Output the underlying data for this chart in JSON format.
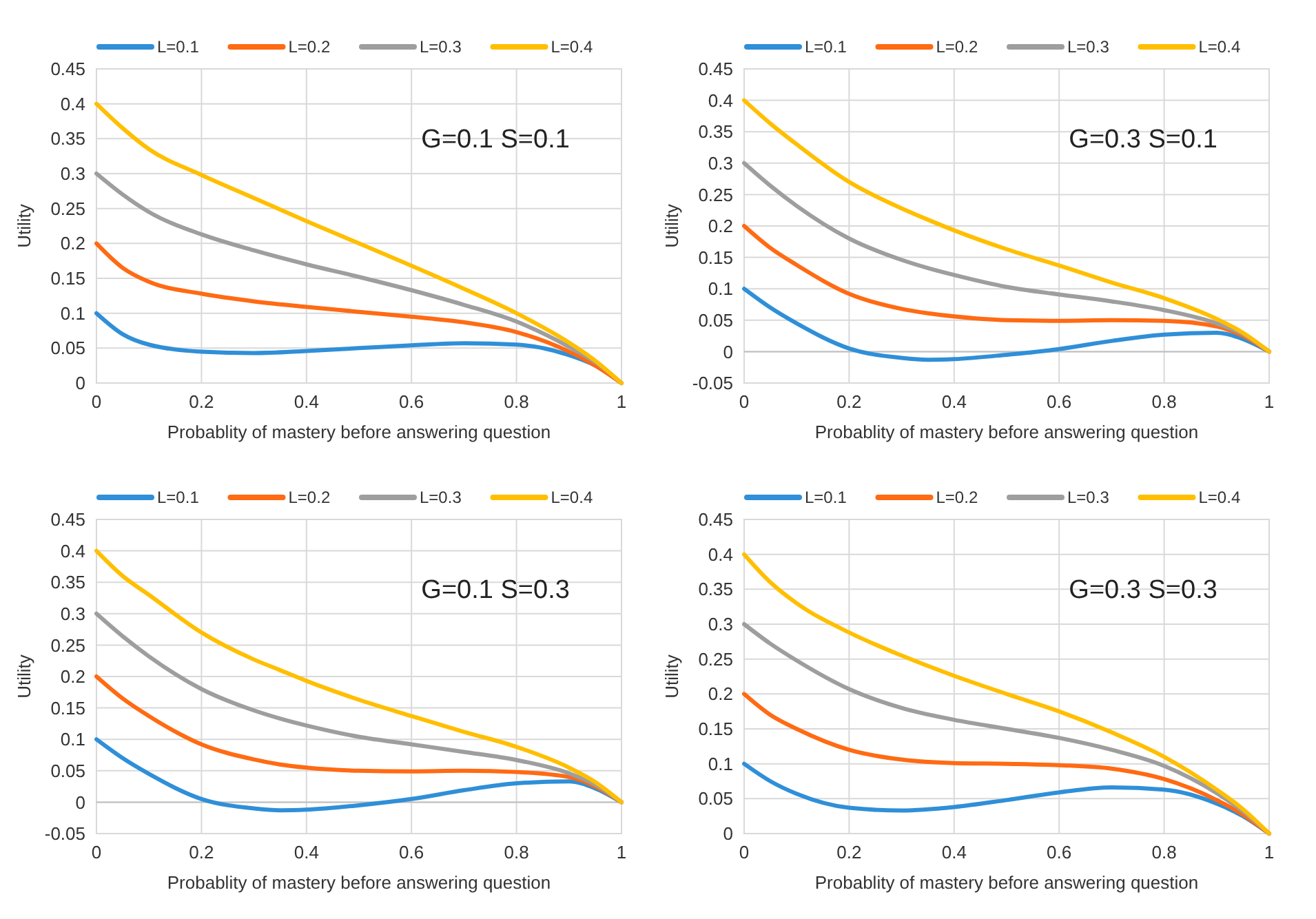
{
  "chart_data": [
    {
      "type": "line",
      "xlabel": "Probablity of mastery before answering question",
      "ylabel": "Utility",
      "annotations": [
        "G=0.1 S=0.1"
      ],
      "xlim": [
        0,
        1
      ],
      "ylim": [
        0,
        0.45
      ],
      "xticks": [
        0,
        0.2,
        0.4,
        0.6,
        0.8,
        1
      ],
      "yticks": [
        0,
        0.05,
        0.1,
        0.15,
        0.2,
        0.25,
        0.3,
        0.35,
        0.4,
        0.45
      ],
      "grid": true,
      "legend": "top",
      "x": [
        0,
        0.05,
        0.1,
        0.2,
        0.3,
        0.4,
        0.5,
        0.6,
        0.7,
        0.8,
        0.9,
        0.95,
        1
      ],
      "series": [
        {
          "name": "L=0.1",
          "color": "#2f8fd8",
          "values": [
            0.1,
            0.07,
            0.055,
            0.045,
            0.043,
            0.046,
            0.05,
            0.054,
            0.057,
            0.055,
            0.04,
            0.025,
            0
          ]
        },
        {
          "name": "L=0.2",
          "color": "#ff6a13",
          "values": [
            0.2,
            0.165,
            0.145,
            0.128,
            0.117,
            0.109,
            0.102,
            0.095,
            0.087,
            0.073,
            0.045,
            0.025,
            0
          ]
        },
        {
          "name": "L=0.3",
          "color": "#9e9e9e",
          "values": [
            0.3,
            0.27,
            0.245,
            0.213,
            0.19,
            0.17,
            0.152,
            0.133,
            0.112,
            0.088,
            0.052,
            0.03,
            0
          ]
        },
        {
          "name": "L=0.4",
          "color": "#ffbf00",
          "values": [
            0.4,
            0.365,
            0.335,
            0.298,
            0.265,
            0.232,
            0.2,
            0.168,
            0.135,
            0.1,
            0.058,
            0.032,
            0
          ]
        }
      ]
    },
    {
      "type": "line",
      "xlabel": "Probablity of mastery before answering question",
      "ylabel": "Utility",
      "annotations": [
        "G=0.3 S=0.1"
      ],
      "xlim": [
        0,
        1
      ],
      "ylim": [
        -0.05,
        0.45
      ],
      "xticks": [
        0,
        0.2,
        0.4,
        0.6,
        0.8,
        1
      ],
      "yticks": [
        -0.05,
        0,
        0.05,
        0.1,
        0.15,
        0.2,
        0.25,
        0.3,
        0.35,
        0.4,
        0.45
      ],
      "grid": true,
      "legend": "top",
      "x": [
        0,
        0.05,
        0.1,
        0.2,
        0.3,
        0.35,
        0.4,
        0.5,
        0.6,
        0.7,
        0.8,
        0.9,
        0.95,
        1
      ],
      "series": [
        {
          "name": "L=0.1",
          "color": "#2f8fd8",
          "values": [
            0.1,
            0.07,
            0.045,
            0.005,
            -0.01,
            -0.013,
            -0.012,
            -0.005,
            0.004,
            0.017,
            0.027,
            0.03,
            0.02,
            0
          ]
        },
        {
          "name": "L=0.2",
          "color": "#ff6a13",
          "values": [
            0.2,
            0.165,
            0.138,
            0.092,
            0.068,
            0.061,
            0.056,
            0.05,
            0.049,
            0.05,
            0.049,
            0.04,
            0.025,
            0
          ]
        },
        {
          "name": "L=0.3",
          "color": "#9e9e9e",
          "values": [
            0.3,
            0.264,
            0.232,
            0.18,
            0.146,
            0.133,
            0.122,
            0.103,
            0.091,
            0.08,
            0.066,
            0.045,
            0.028,
            0
          ]
        },
        {
          "name": "L=0.4",
          "color": "#ffbf00",
          "values": [
            0.4,
            0.363,
            0.33,
            0.27,
            0.228,
            0.21,
            0.193,
            0.163,
            0.137,
            0.11,
            0.085,
            0.052,
            0.03,
            0
          ]
        }
      ]
    },
    {
      "type": "line",
      "xlabel": "Probablity of mastery before answering question",
      "ylabel": "Utility",
      "annotations": [
        "G=0.1 S=0.3"
      ],
      "xlim": [
        0,
        1
      ],
      "ylim": [
        -0.05,
        0.45
      ],
      "xticks": [
        0,
        0.2,
        0.4,
        0.6,
        0.8,
        1
      ],
      "yticks": [
        -0.05,
        0,
        0.05,
        0.1,
        0.15,
        0.2,
        0.25,
        0.3,
        0.35,
        0.4,
        0.45
      ],
      "grid": true,
      "legend": "top",
      "x": [
        0,
        0.05,
        0.1,
        0.2,
        0.3,
        0.35,
        0.4,
        0.5,
        0.6,
        0.7,
        0.8,
        0.9,
        0.95,
        1
      ],
      "series": [
        {
          "name": "L=0.1",
          "color": "#2f8fd8",
          "values": [
            0.1,
            0.07,
            0.045,
            0.005,
            -0.01,
            -0.013,
            -0.012,
            -0.005,
            0.005,
            0.019,
            0.03,
            0.033,
            0.022,
            0
          ]
        },
        {
          "name": "L=0.2",
          "color": "#ff6a13",
          "values": [
            0.2,
            0.165,
            0.137,
            0.092,
            0.068,
            0.06,
            0.055,
            0.05,
            0.049,
            0.05,
            0.048,
            0.04,
            0.025,
            0
          ]
        },
        {
          "name": "L=0.3",
          "color": "#9e9e9e",
          "values": [
            0.3,
            0.264,
            0.232,
            0.18,
            0.146,
            0.133,
            0.122,
            0.104,
            0.092,
            0.08,
            0.067,
            0.046,
            0.028,
            0
          ]
        },
        {
          "name": "L=0.4",
          "color": "#ffbf00",
          "values": [
            0.4,
            0.36,
            0.33,
            0.27,
            0.227,
            0.21,
            0.193,
            0.163,
            0.137,
            0.112,
            0.088,
            0.055,
            0.032,
            0
          ]
        }
      ]
    },
    {
      "type": "line",
      "xlabel": "Probablity of mastery before answering question",
      "ylabel": "Utility",
      "annotations": [
        "G=0.3 S=0.3"
      ],
      "xlim": [
        0,
        1
      ],
      "ylim": [
        0,
        0.45
      ],
      "xticks": [
        0,
        0.2,
        0.4,
        0.6,
        0.8,
        1
      ],
      "yticks": [
        0,
        0.05,
        0.1,
        0.15,
        0.2,
        0.25,
        0.3,
        0.35,
        0.4,
        0.45
      ],
      "grid": true,
      "legend": "top",
      "x": [
        0,
        0.05,
        0.1,
        0.2,
        0.3,
        0.4,
        0.5,
        0.6,
        0.7,
        0.8,
        0.9,
        0.95,
        1
      ],
      "series": [
        {
          "name": "L=0.1",
          "color": "#2f8fd8",
          "values": [
            0.1,
            0.075,
            0.057,
            0.037,
            0.033,
            0.038,
            0.048,
            0.059,
            0.066,
            0.063,
            0.043,
            0.025,
            0
          ]
        },
        {
          "name": "L=0.2",
          "color": "#ff6a13",
          "values": [
            0.2,
            0.17,
            0.15,
            0.12,
            0.106,
            0.101,
            0.1,
            0.098,
            0.093,
            0.078,
            0.048,
            0.027,
            0
          ]
        },
        {
          "name": "L=0.3",
          "color": "#9e9e9e",
          "values": [
            0.3,
            0.272,
            0.248,
            0.207,
            0.18,
            0.163,
            0.15,
            0.137,
            0.12,
            0.097,
            0.058,
            0.032,
            0
          ]
        },
        {
          "name": "L=0.4",
          "color": "#ffbf00",
          "values": [
            0.4,
            0.36,
            0.33,
            0.288,
            0.255,
            0.226,
            0.2,
            0.175,
            0.145,
            0.11,
            0.063,
            0.035,
            0
          ]
        }
      ]
    }
  ]
}
